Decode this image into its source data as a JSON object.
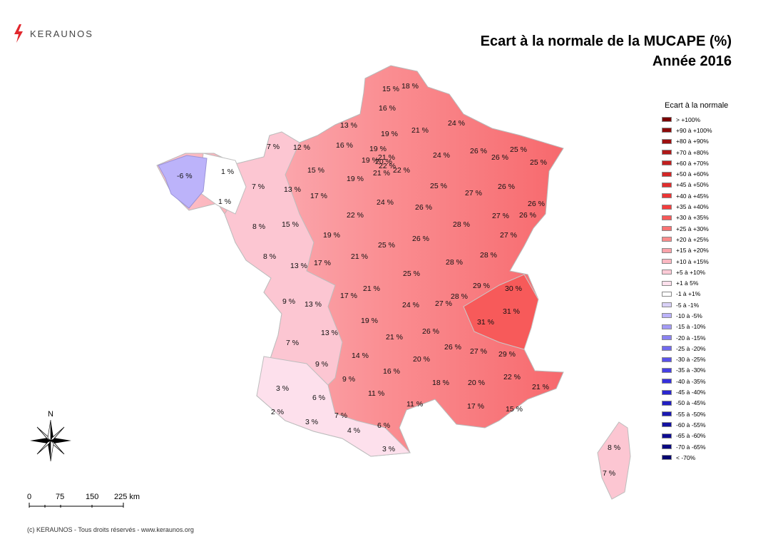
{
  "header": {
    "logo_text": "KERAUNOS",
    "title_line1": "Ecart à la normale de la MUCAPE (%)",
    "title_line2": "Année 2016"
  },
  "legend": {
    "title": "Ecart à la normale",
    "items": [
      {
        "label": "> +100%",
        "color": "#7a0000"
      },
      {
        "label": "+90 à +100%",
        "color": "#8c0a0a"
      },
      {
        "label": "+80 à +90%",
        "color": "#9e1010"
      },
      {
        "label": "+70 à +80%",
        "color": "#b01818"
      },
      {
        "label": "+60 à +70%",
        "color": "#c21f1f"
      },
      {
        "label": "+50 à +60%",
        "color": "#d42626"
      },
      {
        "label": "+45 à +50%",
        "color": "#e02e2e"
      },
      {
        "label": "+40 à +45%",
        "color": "#ec3434"
      },
      {
        "label": "+35 à +40%",
        "color": "#f43d3d"
      },
      {
        "label": "+30 à +35%",
        "color": "#f75858"
      },
      {
        "label": "+25 à +30%",
        "color": "#f97373"
      },
      {
        "label": "+20 à +25%",
        "color": "#fa8c8c"
      },
      {
        "label": "+15 à +20%",
        "color": "#fba3aa"
      },
      {
        "label": "+10 à +15%",
        "color": "#fcb8c2"
      },
      {
        "label": "+5 à +10%",
        "color": "#fdcad6"
      },
      {
        "label": "+1 à 5%",
        "color": "#fde0ec"
      },
      {
        "label": "-1 à +1%",
        "color": "#ffffff"
      },
      {
        "label": "-5 à -1%",
        "color": "#d8d0f6"
      },
      {
        "label": "-10 à -5%",
        "color": "#bcb3fa"
      },
      {
        "label": "-15 à -10%",
        "color": "#a39bf6"
      },
      {
        "label": "-20 à -15%",
        "color": "#8a82f2"
      },
      {
        "label": "-25 à -20%",
        "color": "#716aee"
      },
      {
        "label": "-30 à -25%",
        "color": "#5a52ea"
      },
      {
        "label": "-35 à -30%",
        "color": "#4640e4"
      },
      {
        "label": "-40 à -35%",
        "color": "#3530dc"
      },
      {
        "label": "-45 à -40%",
        "color": "#2a26d0"
      },
      {
        "label": "-50 à -45%",
        "color": "#221fc2"
      },
      {
        "label": "-55 à -50%",
        "color": "#1b19b2"
      },
      {
        "label": "-60 à -55%",
        "color": "#1412a2"
      },
      {
        "label": "-65 à -60%",
        "color": "#0e0c92"
      },
      {
        "label": "-70 à -65%",
        "color": "#080780"
      },
      {
        "label": "< -70%",
        "color": "#040470"
      }
    ]
  },
  "map": {
    "departments": [
      {
        "label": "15 %",
        "value": 15
      },
      {
        "label": "18 %",
        "value": 18
      },
      {
        "label": "16 %",
        "value": 16
      },
      {
        "label": "13 %",
        "value": 13
      },
      {
        "label": "19 %",
        "value": 19
      },
      {
        "label": "21 %",
        "value": 21
      },
      {
        "label": "24 %",
        "value": 24
      },
      {
        "label": "7 %",
        "value": 7
      },
      {
        "label": "12 %",
        "value": 12
      },
      {
        "label": "16 %",
        "value": 16
      },
      {
        "label": "19 %",
        "value": 19
      },
      {
        "label": "26 %",
        "value": 26
      },
      {
        "label": "25 %",
        "value": 25
      },
      {
        "label": "24 %",
        "value": 24
      },
      {
        "label": "26 %",
        "value": 26
      },
      {
        "label": "25 %",
        "value": 25
      },
      {
        "label": "-6 %",
        "value": -6
      },
      {
        "label": "1 %",
        "value": 1
      },
      {
        "label": "15 %",
        "value": 15
      },
      {
        "label": "19 %",
        "value": 19
      },
      {
        "label": "21 %",
        "value": 21
      },
      {
        "label": "22 %",
        "value": 22
      },
      {
        "label": "7 %",
        "value": 7
      },
      {
        "label": "13 %",
        "value": 13
      },
      {
        "label": "17 %",
        "value": 17
      },
      {
        "label": "19 %",
        "value": 19
      },
      {
        "label": "25 %",
        "value": 25
      },
      {
        "label": "27 %",
        "value": 27
      },
      {
        "label": "26 %",
        "value": 26
      },
      {
        "label": "1 %",
        "value": 1
      },
      {
        "label": "24 %",
        "value": 24
      },
      {
        "label": "26 %",
        "value": 26
      },
      {
        "label": "26 %",
        "value": 26
      },
      {
        "label": "27 %",
        "value": 27
      },
      {
        "label": "26 %",
        "value": 26
      },
      {
        "label": "8 %",
        "value": 8
      },
      {
        "label": "15 %",
        "value": 15
      },
      {
        "label": "22 %",
        "value": 22
      },
      {
        "label": "28 %",
        "value": 28
      },
      {
        "label": "19 %",
        "value": 19
      },
      {
        "label": "26 %",
        "value": 26
      },
      {
        "label": "27 %",
        "value": 27
      },
      {
        "label": "8 %",
        "value": 8
      },
      {
        "label": "25 %",
        "value": 25
      },
      {
        "label": "21 %",
        "value": 21
      },
      {
        "label": "28 %",
        "value": 28
      },
      {
        "label": "13 %",
        "value": 13
      },
      {
        "label": "17 %",
        "value": 17
      },
      {
        "label": "28 %",
        "value": 28
      },
      {
        "label": "25 %",
        "value": 25
      },
      {
        "label": "29 %",
        "value": 29
      },
      {
        "label": "30 %",
        "value": 30
      },
      {
        "label": "21 %",
        "value": 21
      },
      {
        "label": "9 %",
        "value": 9
      },
      {
        "label": "17 %",
        "value": 17
      },
      {
        "label": "28 %",
        "value": 28
      },
      {
        "label": "13 %",
        "value": 13
      },
      {
        "label": "24 %",
        "value": 24
      },
      {
        "label": "27 %",
        "value": 27
      },
      {
        "label": "31 %",
        "value": 31
      },
      {
        "label": "19 %",
        "value": 19
      },
      {
        "label": "31 %",
        "value": 31
      },
      {
        "label": "13 %",
        "value": 13
      },
      {
        "label": "21 %",
        "value": 21
      },
      {
        "label": "26 %",
        "value": 26
      },
      {
        "label": "7 %",
        "value": 7
      },
      {
        "label": "26 %",
        "value": 26
      },
      {
        "label": "27 %",
        "value": 27
      },
      {
        "label": "14 %",
        "value": 14
      },
      {
        "label": "29 %",
        "value": 29
      },
      {
        "label": "9 %",
        "value": 9
      },
      {
        "label": "20 %",
        "value": 20
      },
      {
        "label": "16 %",
        "value": 16
      },
      {
        "label": "9 %",
        "value": 9
      },
      {
        "label": "22 %",
        "value": 22
      },
      {
        "label": "3 %",
        "value": 3
      },
      {
        "label": "18 %",
        "value": 18
      },
      {
        "label": "20 %",
        "value": 20
      },
      {
        "label": "21 %",
        "value": 21
      },
      {
        "label": "11 %",
        "value": 11
      },
      {
        "label": "6 %",
        "value": 6
      },
      {
        "label": "11 %",
        "value": 11
      },
      {
        "label": "17 %",
        "value": 17
      },
      {
        "label": "2 %",
        "value": 2
      },
      {
        "label": "15 %",
        "value": 15
      },
      {
        "label": "7 %",
        "value": 7
      },
      {
        "label": "3 %",
        "value": 3
      },
      {
        "label": "4 %",
        "value": 4
      },
      {
        "label": "6 %",
        "value": 6
      },
      {
        "label": "3 %",
        "value": 3
      },
      {
        "label": "8 %",
        "value": 8
      },
      {
        "label": "7 %",
        "value": 7
      },
      {
        "label": "21 %",
        "value": 21
      },
      {
        "label": "20 %",
        "value": 20
      },
      {
        "label": "22 %",
        "value": 22
      }
    ]
  },
  "compass": {
    "north_label": "N"
  },
  "scale": {
    "ticks": [
      "0",
      "75",
      "150",
      "225 km"
    ]
  },
  "footer": {
    "text": "(c) KERAUNOS - Tous droits réservés - www.keraunos.org"
  }
}
